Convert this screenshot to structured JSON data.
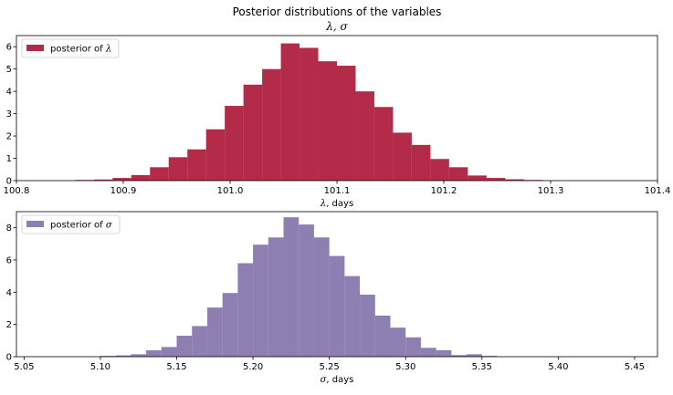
{
  "figure": {
    "suptitle_line1": "Posterior distributions of the variables",
    "suptitle_line2": "λ, σ"
  },
  "chart_data": [
    {
      "type": "bar",
      "subtype": "histogram",
      "title": "",
      "xlabel_symbol": "λ",
      "xlabel_suffix": ", days",
      "ylabel": "",
      "color": "#A60628",
      "alpha": 0.85,
      "legend": {
        "text": "posterior of ",
        "symbol": "λ",
        "placement": "upper-left"
      },
      "xlim": [
        100.8,
        101.4
      ],
      "ylim": [
        0,
        6.5
      ],
      "xticks": [
        100.8,
        100.9,
        101.0,
        101.1,
        101.2,
        101.3,
        101.4
      ],
      "xtick_labels": [
        "100.8",
        "100.9",
        "101.0",
        "101.1",
        "101.2",
        "101.3",
        "101.4"
      ],
      "yticks": [
        0,
        1,
        2,
        3,
        4,
        5,
        6
      ],
      "ytick_labels": [
        "0",
        "1",
        "2",
        "3",
        "4",
        "5",
        "6"
      ],
      "bin_edges": [
        100.855,
        100.8725,
        100.89,
        100.9075,
        100.925,
        100.9425,
        100.96,
        100.9775,
        100.995,
        101.0125,
        101.03,
        101.0475,
        101.065,
        101.0825,
        101.1,
        101.1175,
        101.135,
        101.1525,
        101.17,
        101.1875,
        101.205,
        101.2225,
        101.24,
        101.2575,
        101.275,
        101.2925,
        101.31
      ],
      "values": [
        0.03,
        0.05,
        0.12,
        0.25,
        0.6,
        1.05,
        1.4,
        2.3,
        3.35,
        4.3,
        5.0,
        6.15,
        5.95,
        5.35,
        5.15,
        4.0,
        3.3,
        2.15,
        1.6,
        0.97,
        0.6,
        0.23,
        0.12,
        0.06,
        0.03,
        0.0
      ]
    },
    {
      "type": "bar",
      "subtype": "histogram",
      "title": "",
      "xlabel_symbol": "σ",
      "xlabel_suffix": ", days",
      "ylabel": "",
      "color": "#7A68A6",
      "alpha": 0.85,
      "legend": {
        "text": "posterior of ",
        "symbol": "σ",
        "placement": "upper-left"
      },
      "xlim": [
        5.045,
        5.465
      ],
      "ylim": [
        0,
        9.0
      ],
      "xticks": [
        5.05,
        5.1,
        5.15,
        5.2,
        5.25,
        5.3,
        5.35,
        5.4,
        5.45
      ],
      "xtick_labels": [
        "5.05",
        "5.10",
        "5.15",
        "5.20",
        "5.25",
        "5.30",
        "5.35",
        "5.40",
        "5.45"
      ],
      "yticks": [
        0,
        2,
        4,
        6,
        8
      ],
      "ytick_labels": [
        "0",
        "2",
        "4",
        "6",
        "8"
      ],
      "bin_edges": [
        5.1,
        5.11,
        5.12,
        5.13,
        5.14,
        5.15,
        5.16,
        5.17,
        5.18,
        5.19,
        5.2,
        5.21,
        5.22,
        5.23,
        5.24,
        5.25,
        5.26,
        5.27,
        5.28,
        5.29,
        5.3,
        5.31,
        5.32,
        5.33,
        5.34,
        5.35,
        5.36,
        5.37,
        5.38,
        5.39,
        5.4,
        5.41,
        5.42
      ],
      "values": [
        0.05,
        0.08,
        0.15,
        0.4,
        0.6,
        1.3,
        1.9,
        3.05,
        3.95,
        5.8,
        6.95,
        7.4,
        8.65,
        8.2,
        7.4,
        6.25,
        5.0,
        3.85,
        2.55,
        1.8,
        1.2,
        0.55,
        0.4,
        0.1,
        0.15,
        0.05,
        0.0,
        0.0,
        0.0,
        0.0,
        0.0,
        0.0
      ]
    }
  ]
}
